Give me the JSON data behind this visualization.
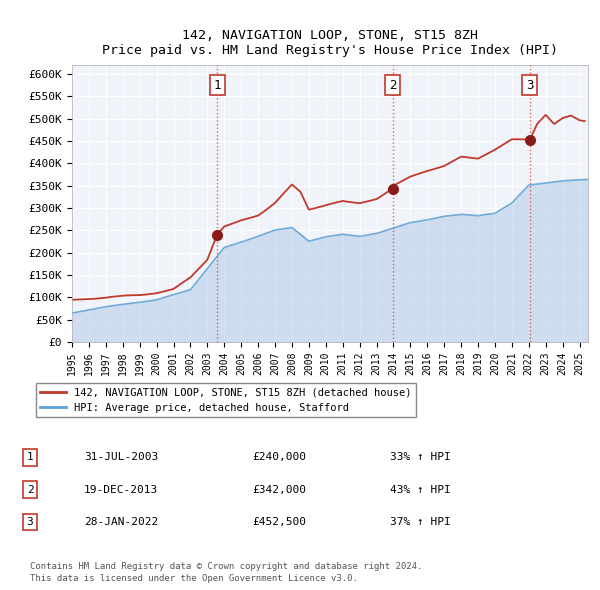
{
  "title": "142, NAVIGATION LOOP, STONE, ST15 8ZH",
  "subtitle": "Price paid vs. HM Land Registry's House Price Index (HPI)",
  "legend_line1": "142, NAVIGATION LOOP, STONE, ST15 8ZH (detached house)",
  "legend_line2": "HPI: Average price, detached house, Stafford",
  "footer_line1": "Contains HM Land Registry data © Crown copyright and database right 2024.",
  "footer_line2": "This data is licensed under the Open Government Licence v3.0.",
  "transactions": [
    {
      "num": 1,
      "date": "31-JUL-2003",
      "price": "£240,000",
      "pct": "33% ↑ HPI",
      "x_year": 2003.58,
      "y_val": 240000
    },
    {
      "num": 2,
      "date": "19-DEC-2013",
      "price": "£342,000",
      "pct": "43% ↑ HPI",
      "x_year": 2013.97,
      "y_val": 342000
    },
    {
      "num": 3,
      "date": "28-JAN-2022",
      "price": "£452,500",
      "pct": "37% ↑ HPI",
      "x_year": 2022.07,
      "y_val": 452500
    }
  ],
  "hpi_color": "#aec6e8",
  "hpi_line_color": "#5a9fd4",
  "price_color": "#c0392b",
  "plot_bg_color": "#f0f4fa",
  "yticks": [
    0,
    50000,
    100000,
    150000,
    200000,
    250000,
    300000,
    350000,
    400000,
    450000,
    500000,
    550000,
    600000
  ],
  "yticklabels": [
    "£0",
    "£50K",
    "£100K",
    "£150K",
    "£200K",
    "£250K",
    "£300K",
    "£350K",
    "£400K",
    "£450K",
    "£500K",
    "£550K",
    "£600K"
  ],
  "ylim": [
    0,
    620000
  ],
  "xlim_start": 1995,
  "xlim_end": 2025.5,
  "hpi_keypoints": {
    "1995": 65000,
    "1997": 78000,
    "2000": 93000,
    "2002": 115000,
    "2004": 210000,
    "2005": 222000,
    "2007": 248000,
    "2008": 253000,
    "2009": 222000,
    "2010": 232000,
    "2011": 238000,
    "2012": 233000,
    "2013": 240000,
    "2014": 252000,
    "2015": 265000,
    "2016": 272000,
    "2017": 280000,
    "2018": 284000,
    "2019": 279000,
    "2020": 284000,
    "2021": 308000,
    "2022": 348000,
    "2023": 353000,
    "2024": 358000,
    "2025.5": 363000
  },
  "price_keypoints": {
    "1995.0": 95000,
    "1996": 97000,
    "1997": 100000,
    "1998": 104000,
    "1999": 107000,
    "2000": 111000,
    "2001": 119000,
    "2002": 143000,
    "2003.0": 183000,
    "2003.58": 240000,
    "2004": 258000,
    "2005": 272000,
    "2006": 283000,
    "2007": 308000,
    "2008": 348000,
    "2008.5": 332000,
    "2009": 292000,
    "2010": 302000,
    "2011": 312000,
    "2012": 308000,
    "2013": 318000,
    "2013.97": 342000,
    "2014": 348000,
    "2015": 368000,
    "2016": 382000,
    "2017": 392000,
    "2018": 412000,
    "2019": 408000,
    "2020": 428000,
    "2021": 452000,
    "2022.07": 452500,
    "2022.5": 488000,
    "2023": 508000,
    "2023.5": 488000,
    "2024": 502000,
    "2024.5": 508000,
    "2025": 498000,
    "2025.3": 496000
  }
}
